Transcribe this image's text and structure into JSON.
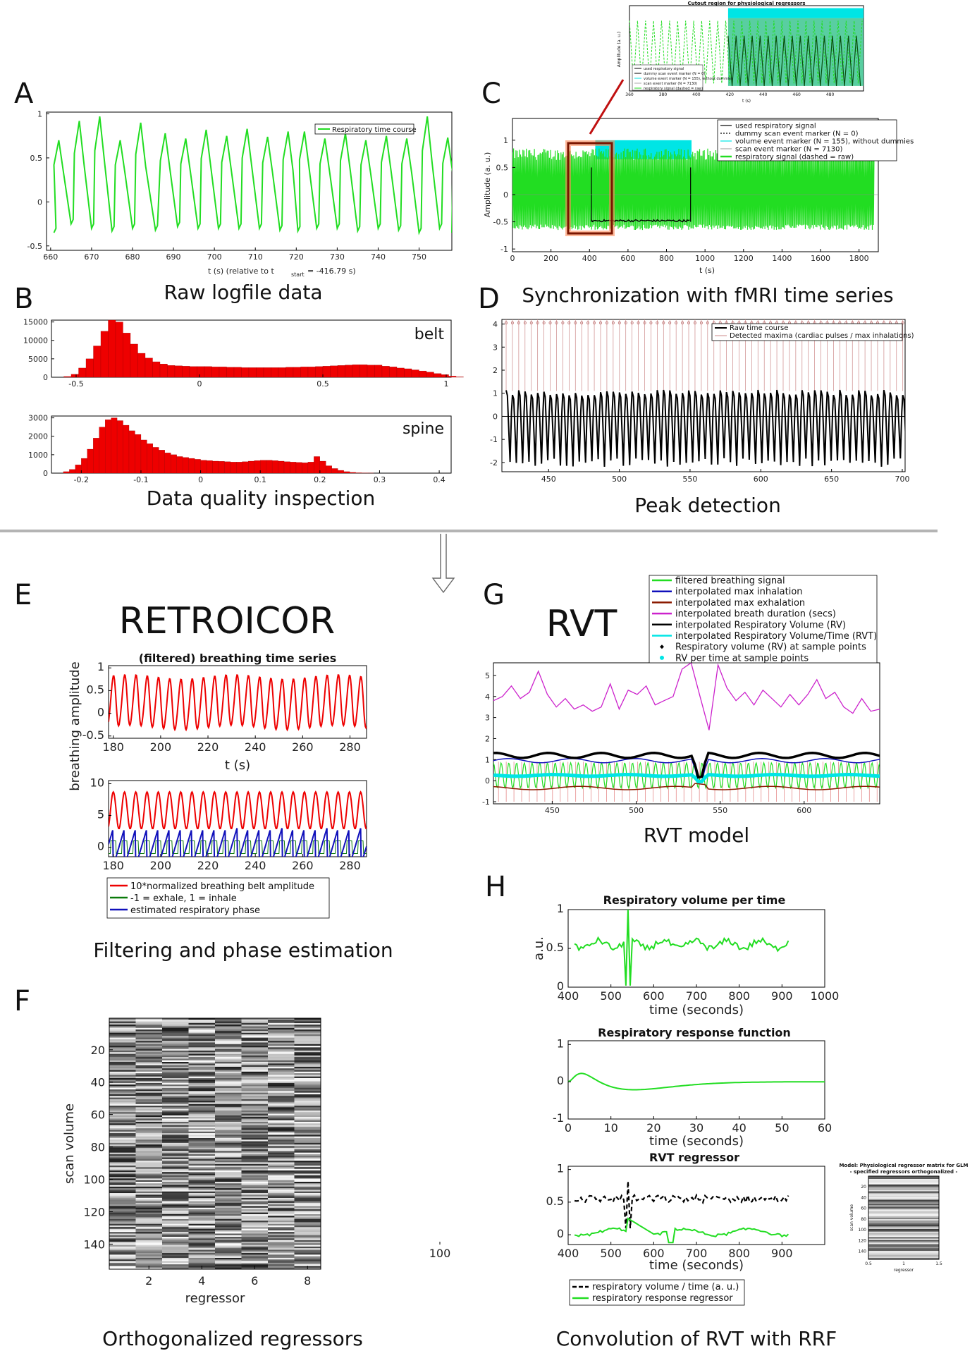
{
  "panels": {
    "A": {
      "letter": "A",
      "caption": "Raw logfile data",
      "legend": "Respiratory time course",
      "xlabel": "t (s) (relative to t",
      "xlabel_sub": "start",
      "xlabel_tail": " = -416.79 s)"
    },
    "B": {
      "letter": "B",
      "caption": "Data quality inspection",
      "label_top": "belt",
      "label_bottom": "spine"
    },
    "C": {
      "letter": "C",
      "caption": "Synchronization with fMRI time series",
      "ylabel": "Amplitude (a. u.)",
      "xlabel": "t (s)",
      "legend": [
        "used respiratory signal",
        "dummy scan event marker (N = 0)",
        "volume event marker (N = 155), without dummies",
        "scan event marker (N = 7130)",
        "respiratory signal (dashed = raw)"
      ],
      "inset_title": "Cutout region for physiological regressors",
      "inset_xlabel": "t (s)",
      "inset_ylabel": "Amplitude (a. u.)"
    },
    "D": {
      "letter": "D",
      "caption": "Peak detection",
      "legend": [
        "Raw time course",
        "Detected maxima (cardiac pulses / max inhalations)"
      ]
    },
    "E": {
      "letter": "E",
      "heading": "RETROICOR",
      "caption": "Filtering and phase estimation",
      "title": "(filtered) breathing time series",
      "ylabel": "breathing amplitude",
      "xlabel": "t (s)",
      "legend": [
        "10*normalized breathing belt amplitude",
        "-1 = exhale, 1 = inhale",
        "estimated respiratory phase"
      ]
    },
    "F": {
      "letter": "F",
      "caption": "Orthogonalized regressors",
      "ylabel": "scan volume",
      "xlabel": "regressor"
    },
    "G": {
      "letter": "G",
      "heading": "RVT",
      "caption": "RVT model",
      "legend": [
        "filtered breathing signal",
        "interpolated max inhalation",
        "interpolated max exhalation",
        "interpolated breath duration (secs)",
        "interpolated Respiratory Volume (RV)",
        "interpolated Respiratory Volume/Time (RVT)",
        "Respiratory volume (RV) at sample points",
        "RV per time at sample points"
      ]
    },
    "H": {
      "letter": "H",
      "caption": "Convolution of RVT with RRF",
      "title1": "Respiratory volume per time",
      "ylabel1": "a.u.",
      "xlabel1": "time (seconds)",
      "title2": "Respiratory response function",
      "xlabel2": "time (seconds)",
      "title3": "RVT regressor",
      "xlabel3": "time (seconds)",
      "legend": [
        "respiratory volume / time (a. u.)",
        "respiratory response regressor"
      ],
      "inset_title1": "Model: Physiological regressor matrix for GLM",
      "inset_title2": "- specified regressors orthogonalized -",
      "inset_ylabel": "scan volume",
      "inset_xlabel": "regressor"
    }
  },
  "colors": {
    "green": "#22dd22",
    "red": "#ee0000",
    "blue": "#1010bb",
    "cyan": "#00e5e5",
    "magenta": "#cc22cc",
    "darkred": "#8b1a00",
    "black": "#000000"
  },
  "chart_data": [
    {
      "type": "line",
      "id": "A",
      "x_ticks": [
        "660",
        "670",
        "680",
        "690",
        "700",
        "710",
        "720",
        "730",
        "740",
        "750"
      ],
      "y_ticks": [
        "-0.5",
        "0",
        "0.5",
        "1"
      ],
      "xlim": [
        659,
        758
      ],
      "ylim": [
        -0.55,
        1.02
      ],
      "series": [
        {
          "name": "Respiratory time course",
          "peaks_x": [
            662,
            667,
            672,
            677,
            682,
            688,
            693,
            698,
            703,
            708,
            713,
            718,
            722,
            727,
            732,
            737,
            742,
            747,
            752,
            757
          ],
          "peak_values": [
            0.7,
            0.92,
            0.97,
            0.7,
            0.9,
            0.78,
            0.72,
            0.82,
            0.75,
            0.83,
            0.74,
            0.8,
            0.8,
            0.72,
            0.78,
            0.7,
            0.75,
            0.72,
            0.97,
            0.73
          ],
          "trough_values": [
            -0.35,
            -0.25,
            -0.3,
            -0.33,
            -0.3,
            -0.32,
            -0.28,
            -0.3,
            -0.3,
            -0.3,
            -0.3,
            -0.32,
            -0.33,
            -0.3,
            -0.3,
            -0.33,
            -0.3,
            -0.32,
            -0.35,
            -0.3
          ]
        }
      ]
    },
    {
      "type": "bar",
      "id": "B-belt",
      "x_ticks": [
        "-0.5",
        "0",
        "0.5",
        "1"
      ],
      "y_ticks": [
        "0",
        "5000",
        "10000",
        "15000"
      ],
      "xlim": [
        -0.6,
        1.02
      ],
      "ylim": [
        0,
        15500
      ],
      "bin_start": -0.55,
      "bin_width": 0.03,
      "values": [
        200,
        800,
        2500,
        5000,
        8500,
        12500,
        15500,
        15000,
        12000,
        9000,
        6500,
        5200,
        4200,
        3600,
        3200,
        3100,
        3000,
        2900,
        2900,
        2900,
        2800,
        2800,
        2700,
        2700,
        2600,
        2600,
        2600,
        2600,
        2600,
        2600,
        2700,
        2700,
        2800,
        2800,
        2900,
        3000,
        3100,
        3200,
        3300,
        3400,
        3400,
        3300,
        3300,
        3000,
        2800,
        2500,
        2300,
        2000,
        1700,
        1400,
        1000,
        700,
        300,
        100
      ]
    },
    {
      "type": "bar",
      "id": "B-spine",
      "x_ticks": [
        "-0.2",
        "-0.1",
        "0",
        "0.1",
        "0.2",
        "0.3",
        "0.4"
      ],
      "y_ticks": [
        "0",
        "1000",
        "2000",
        "3000"
      ],
      "xlim": [
        -0.25,
        0.42
      ],
      "ylim": [
        0,
        3100
      ],
      "bin_start": -0.23,
      "bin_width": 0.01,
      "values": [
        80,
        200,
        450,
        800,
        1300,
        1900,
        2500,
        2900,
        3000,
        2850,
        2600,
        2300,
        2100,
        1800,
        1600,
        1400,
        1250,
        1100,
        1000,
        900,
        850,
        800,
        750,
        700,
        680,
        650,
        640,
        620,
        600,
        600,
        620,
        650,
        680,
        700,
        700,
        680,
        650,
        620,
        600,
        580,
        560,
        600,
        900,
        650,
        400,
        250,
        150,
        80,
        40,
        20,
        10,
        5,
        0
      ]
    },
    {
      "type": "line",
      "id": "C",
      "x_ticks": [
        "0",
        "200",
        "400",
        "600",
        "800",
        "1000",
        "1200",
        "1400",
        "1600",
        "1800"
      ],
      "y_ticks": [
        "-1",
        "-0.5",
        "0",
        "0.5",
        "1"
      ],
      "xlim": [
        0,
        1900
      ],
      "ylim": [
        -1.05,
        1.4
      ]
    },
    {
      "type": "line",
      "id": "D",
      "x_ticks": [
        "450",
        "500",
        "550",
        "600",
        "650",
        "700"
      ],
      "y_ticks": [
        "-2",
        "-1",
        "0",
        "1",
        "2",
        "3",
        "4"
      ],
      "xlim": [
        417,
        702
      ],
      "ylim": [
        -2.4,
        4.2
      ]
    },
    {
      "type": "line",
      "id": "E-top",
      "x_ticks": [
        "180",
        "200",
        "220",
        "240",
        "260",
        "280"
      ],
      "y_ticks": [
        "-0.5",
        "0",
        "0.5",
        "1"
      ],
      "xlim": [
        178,
        287
      ],
      "ylim": [
        -0.55,
        1.05
      ]
    },
    {
      "type": "line",
      "id": "E-bottom",
      "x_ticks": [
        "180",
        "200",
        "220",
        "240",
        "260",
        "280"
      ],
      "y_ticks": [
        "0",
        "5",
        "10"
      ],
      "xlim": [
        178,
        287
      ],
      "ylim": [
        -1.5,
        10.5
      ]
    },
    {
      "type": "heatmap",
      "id": "F",
      "x_ticks": [
        "2",
        "4",
        "6",
        "8"
      ],
      "y_ticks": [
        "20",
        "40",
        "60",
        "80",
        "100",
        "120",
        "140"
      ],
      "columns": 8,
      "rows": 155
    },
    {
      "type": "line",
      "id": "G",
      "x_ticks": [
        "450",
        "500",
        "550",
        "600"
      ],
      "y_ticks": [
        "-1",
        "0",
        "1",
        "2",
        "3",
        "4",
        "5"
      ],
      "xlim": [
        415,
        645
      ],
      "ylim": [
        -1.1,
        5.6
      ]
    },
    {
      "type": "line",
      "id": "H-rvt",
      "x_ticks": [
        "400",
        "500",
        "600",
        "700",
        "800",
        "900",
        "1000"
      ],
      "y_ticks": [
        "0",
        "0.5",
        "1"
      ],
      "xlim": [
        400,
        1000
      ],
      "ylim": [
        0,
        1
      ]
    },
    {
      "type": "line",
      "id": "H-rrf",
      "x_ticks": [
        "0",
        "10",
        "20",
        "30",
        "40",
        "50",
        "60"
      ],
      "y_ticks": [
        "-1",
        "0",
        "1"
      ],
      "xlim": [
        0,
        60
      ],
      "ylim": [
        -1,
        1.1
      ]
    },
    {
      "type": "line",
      "id": "H-reg",
      "x_ticks": [
        "400",
        "500",
        "600",
        "700",
        "800",
        "900",
        "100"
      ],
      "y_ticks": [
        "0",
        "0.5",
        "1"
      ],
      "xlim": [
        400,
        1000
      ],
      "ylim": [
        -0.15,
        1.05
      ]
    }
  ]
}
